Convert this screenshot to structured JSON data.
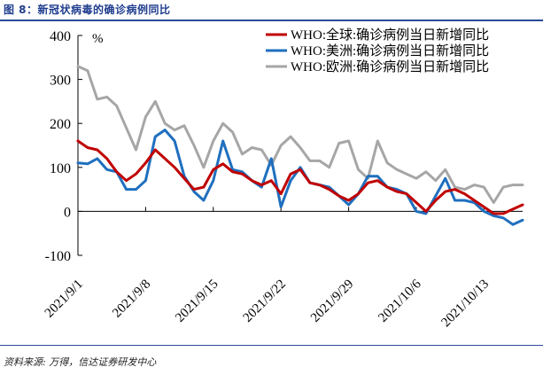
{
  "figure": {
    "title": "图 8：新冠状病毒的确诊病例同比",
    "source": "资料来源: 万得，信达证券研发中心"
  },
  "chart_data": {
    "type": "line",
    "unit_label": "%",
    "ylim": [
      -100,
      400
    ],
    "yticks": [
      "400",
      "300",
      "200",
      "100",
      "0",
      "-100"
    ],
    "xticks": [
      "2021/9/1",
      "2021/9/8",
      "2021/9/15",
      "2021/9/22",
      "2021/9/29",
      "2021/10/6",
      "2021/10/13"
    ],
    "x_start_label": "2021/9/1",
    "legend_placement": "top-right",
    "grid": false,
    "series": [
      {
        "name": "WHO:全球:确诊病例当日新增同比",
        "color": "#c00000",
        "values": [
          160,
          145,
          140,
          120,
          90,
          70,
          85,
          110,
          140,
          120,
          100,
          75,
          50,
          55,
          95,
          108,
          90,
          85,
          70,
          60,
          70,
          40,
          85,
          95,
          65,
          60,
          50,
          35,
          25,
          40,
          65,
          70,
          55,
          45,
          40,
          20,
          0,
          25,
          45,
          50,
          40,
          25,
          10,
          -5,
          -5,
          5,
          15
        ]
      },
      {
        "name": "WHO:美洲:确诊病例当日新增同比",
        "color": "#1f6fbf",
        "values": [
          110,
          108,
          120,
          95,
          90,
          50,
          50,
          70,
          170,
          185,
          160,
          80,
          45,
          25,
          70,
          160,
          95,
          90,
          70,
          55,
          120,
          10,
          70,
          100,
          65,
          60,
          55,
          35,
          15,
          40,
          80,
          80,
          55,
          50,
          40,
          0,
          -5,
          35,
          75,
          25,
          25,
          20,
          0,
          -10,
          -15,
          -30,
          -20
        ]
      },
      {
        "name": "WHO:欧洲:确诊病例当日新增同比",
        "color": "#a6a6a6",
        "values": [
          330,
          320,
          255,
          260,
          240,
          190,
          140,
          215,
          250,
          200,
          185,
          195,
          150,
          100,
          160,
          200,
          180,
          130,
          145,
          140,
          105,
          150,
          170,
          145,
          115,
          115,
          100,
          155,
          160,
          95,
          75,
          160,
          110,
          95,
          85,
          75,
          90,
          70,
          95,
          55,
          50,
          60,
          55,
          20,
          55,
          60,
          60
        ]
      }
    ]
  }
}
